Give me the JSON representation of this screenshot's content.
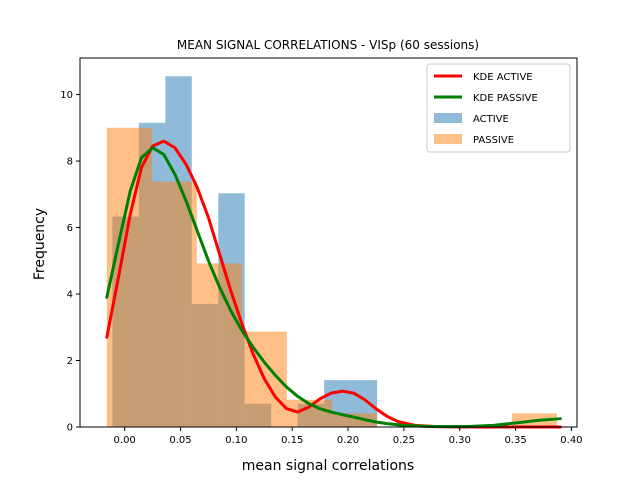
{
  "chart_data": {
    "type": "histogram",
    "title": "MEAN SIGNAL CORRELATIONS - VISp (60 sessions)",
    "xlabel": "mean signal correlations",
    "ylabel": "Frequency",
    "xlim": [
      -0.04,
      0.405
    ],
    "ylim": [
      0,
      11.1
    ],
    "xticks": [
      0.0,
      0.05,
      0.1,
      0.15,
      0.2,
      0.25,
      0.3,
      0.35,
      0.4
    ],
    "xtick_labels": [
      "0.00",
      "0.05",
      "0.10",
      "0.15",
      "0.20",
      "0.25",
      "0.30",
      "0.35",
      "0.40"
    ],
    "yticks": [
      0,
      2,
      4,
      6,
      8,
      10
    ],
    "ytick_labels": [
      "0",
      "2",
      "4",
      "6",
      "8",
      "10"
    ],
    "histograms": [
      {
        "name": "ACTIVE",
        "color": "#1f77b4",
        "alpha": 0.5,
        "bins": [
          {
            "x0": -0.011,
            "x1": 0.0127,
            "value": 6.33
          },
          {
            "x0": 0.0127,
            "x1": 0.0364,
            "value": 9.15
          },
          {
            "x0": 0.0364,
            "x1": 0.0601,
            "value": 10.55
          },
          {
            "x0": 0.0601,
            "x1": 0.0838,
            "value": 3.7
          },
          {
            "x0": 0.0838,
            "x1": 0.1075,
            "value": 7.03
          },
          {
            "x0": 0.1075,
            "x1": 0.1312,
            "value": 0.7
          },
          {
            "x0": 0.1312,
            "x1": 0.1549,
            "value": 0.0
          },
          {
            "x0": 0.1549,
            "x1": 0.1786,
            "value": 0.7
          },
          {
            "x0": 0.1786,
            "x1": 0.2023,
            "value": 1.41
          },
          {
            "x0": 0.2023,
            "x1": 0.226,
            "value": 1.41
          }
        ]
      },
      {
        "name": "PASSIVE",
        "color": "#ff7f0e",
        "alpha": 0.5,
        "bins": [
          {
            "x0": -0.016,
            "x1": 0.0243,
            "value": 9.0
          },
          {
            "x0": 0.0243,
            "x1": 0.0646,
            "value": 7.38
          },
          {
            "x0": 0.0646,
            "x1": 0.1049,
            "value": 4.92
          },
          {
            "x0": 0.1049,
            "x1": 0.1452,
            "value": 2.87
          },
          {
            "x0": 0.1452,
            "x1": 0.1855,
            "value": 0.82
          },
          {
            "x0": 0.1855,
            "x1": 0.2258,
            "value": 0.41
          },
          {
            "x0": 0.2258,
            "x1": 0.2661,
            "value": 0.0
          },
          {
            "x0": 0.2661,
            "x1": 0.3064,
            "value": 0.0
          },
          {
            "x0": 0.3064,
            "x1": 0.3467,
            "value": 0.0
          },
          {
            "x0": 0.3467,
            "x1": 0.387,
            "value": 0.41
          }
        ]
      }
    ],
    "kde": [
      {
        "name": "KDE ACTIVE",
        "color": "#ff0000",
        "points": [
          [
            -0.016,
            2.7
          ],
          [
            -0.005,
            4.6
          ],
          [
            0.005,
            6.4
          ],
          [
            0.015,
            7.8
          ],
          [
            0.025,
            8.45
          ],
          [
            0.035,
            8.6
          ],
          [
            0.045,
            8.4
          ],
          [
            0.055,
            7.9
          ],
          [
            0.065,
            7.2
          ],
          [
            0.075,
            6.3
          ],
          [
            0.085,
            5.2
          ],
          [
            0.095,
            4.1
          ],
          [
            0.105,
            3.1
          ],
          [
            0.115,
            2.2
          ],
          [
            0.125,
            1.45
          ],
          [
            0.135,
            0.9
          ],
          [
            0.145,
            0.55
          ],
          [
            0.155,
            0.45
          ],
          [
            0.165,
            0.6
          ],
          [
            0.175,
            0.85
          ],
          [
            0.185,
            1.02
          ],
          [
            0.195,
            1.08
          ],
          [
            0.205,
            1.02
          ],
          [
            0.215,
            0.82
          ],
          [
            0.225,
            0.55
          ],
          [
            0.235,
            0.32
          ],
          [
            0.245,
            0.16
          ],
          [
            0.26,
            0.05
          ],
          [
            0.28,
            0.01
          ],
          [
            0.3,
            0.0
          ],
          [
            0.33,
            0.0
          ],
          [
            0.36,
            0.0
          ],
          [
            0.39,
            0.0
          ]
        ]
      },
      {
        "name": "KDE PASSIVE",
        "color": "#008000",
        "points": [
          [
            -0.016,
            3.9
          ],
          [
            -0.005,
            5.6
          ],
          [
            0.005,
            7.1
          ],
          [
            0.015,
            8.1
          ],
          [
            0.025,
            8.4
          ],
          [
            0.035,
            8.2
          ],
          [
            0.045,
            7.6
          ],
          [
            0.055,
            6.8
          ],
          [
            0.065,
            5.9
          ],
          [
            0.075,
            5.0
          ],
          [
            0.085,
            4.2
          ],
          [
            0.095,
            3.5
          ],
          [
            0.105,
            2.9
          ],
          [
            0.115,
            2.4
          ],
          [
            0.125,
            1.95
          ],
          [
            0.135,
            1.55
          ],
          [
            0.145,
            1.2
          ],
          [
            0.155,
            0.92
          ],
          [
            0.165,
            0.7
          ],
          [
            0.175,
            0.55
          ],
          [
            0.185,
            0.45
          ],
          [
            0.195,
            0.37
          ],
          [
            0.205,
            0.3
          ],
          [
            0.215,
            0.22
          ],
          [
            0.225,
            0.15
          ],
          [
            0.235,
            0.1
          ],
          [
            0.25,
            0.05
          ],
          [
            0.27,
            0.02
          ],
          [
            0.29,
            0.01
          ],
          [
            0.31,
            0.02
          ],
          [
            0.33,
            0.05
          ],
          [
            0.35,
            0.12
          ],
          [
            0.37,
            0.2
          ],
          [
            0.39,
            0.25
          ]
        ]
      }
    ],
    "legend": {
      "position": "top-right",
      "entries": [
        {
          "label": "KDE ACTIVE",
          "kind": "line",
          "color": "#ff0000"
        },
        {
          "label": "KDE PASSIVE",
          "kind": "line",
          "color": "#008000"
        },
        {
          "label": "ACTIVE",
          "kind": "patch",
          "color": "#1f77b4",
          "alpha": 0.5
        },
        {
          "label": "PASSIVE",
          "kind": "patch",
          "color": "#ff7f0e",
          "alpha": 0.5
        }
      ]
    },
    "grid": false
  }
}
